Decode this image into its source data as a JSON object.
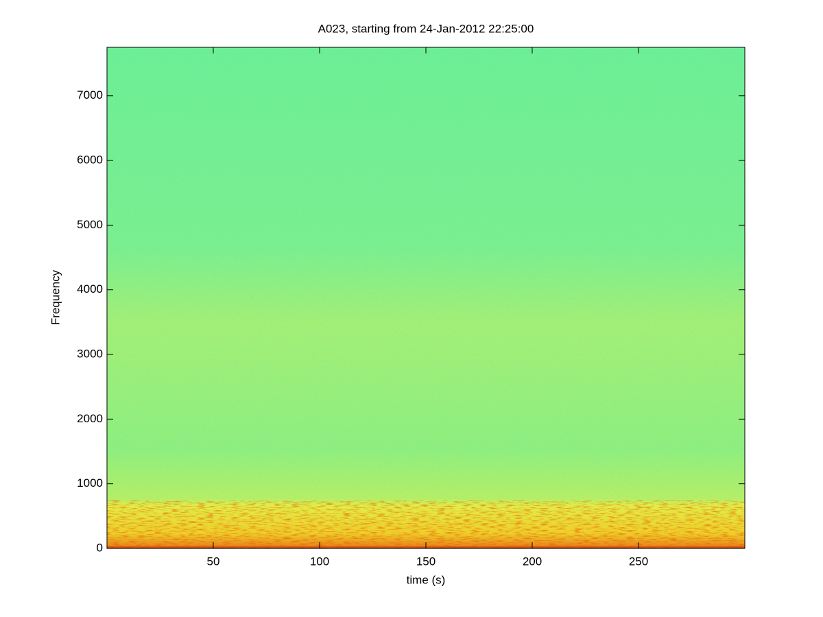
{
  "chart_data": {
    "type": "spectrogram",
    "title": "A023, starting from 24-Jan-2012 22:25:00",
    "x_label": "time (s)",
    "y_label": "Frequency",
    "xlim": [
      0,
      300
    ],
    "xticks": [
      50,
      100,
      150,
      200,
      250
    ],
    "ylim": [
      0,
      7750
    ],
    "yticks": [
      0,
      1000,
      2000,
      3000,
      4000,
      5000,
      6000,
      7000
    ]
  }
}
